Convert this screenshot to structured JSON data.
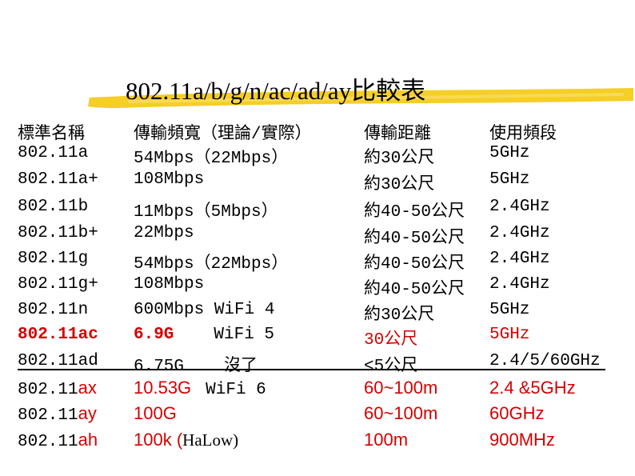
{
  "title": "802.11a/b/g/n/ac/ad/ay比較表",
  "table": {
    "rows": [
      [
        "標準名稱",
        "傳輸頻寬（理論/實際）",
        "傳輸距離",
        "使用頻段"
      ],
      [
        "802.11a",
        "54Mbps（22Mbps）",
        "約30公尺",
        "5GHz"
      ],
      [
        "802.11a+",
        "108Mbps",
        "約30公尺",
        "5GHz"
      ],
      [
        "802.11b",
        "11Mbps（5Mbps）",
        "約40-50公尺",
        "2.4GHz"
      ],
      [
        "802.11b+",
        "22Mbps",
        "約40-50公尺",
        "2.4GHz"
      ],
      [
        "802.11g",
        "54Mbps（22Mbps）",
        "約40-50公尺",
        "2.4GHz"
      ],
      [
        "802.11g+",
        "108Mbps",
        "約40-50公尺",
        "2.4GHz"
      ],
      [
        "802.11n",
        "600Mbps WiFi 4",
        "約30公尺",
        "5GHz"
      ],
      [
        "802.11ac",
        [
          "6.9G",
          "WiFi 5"
        ],
        "30公尺",
        "5GHz"
      ],
      [
        "802.11ad",
        [
          "6.75G",
          "沒了"
        ],
        "<5公尺",
        "2.4/5/60GHz"
      ],
      [
        [
          "802.11",
          "ax"
        ],
        [
          "10.53G",
          "WiFi 6"
        ],
        "60~100m",
        "2.4 &5GHz"
      ],
      [
        [
          "802.11",
          "ay"
        ],
        "100G",
        "60~100m",
        "60GHz"
      ],
      [
        [
          "802.11",
          "ah"
        ],
        [
          "100k (",
          "HaLow)"
        ],
        "100m",
        "900MHz"
      ]
    ]
  }
}
